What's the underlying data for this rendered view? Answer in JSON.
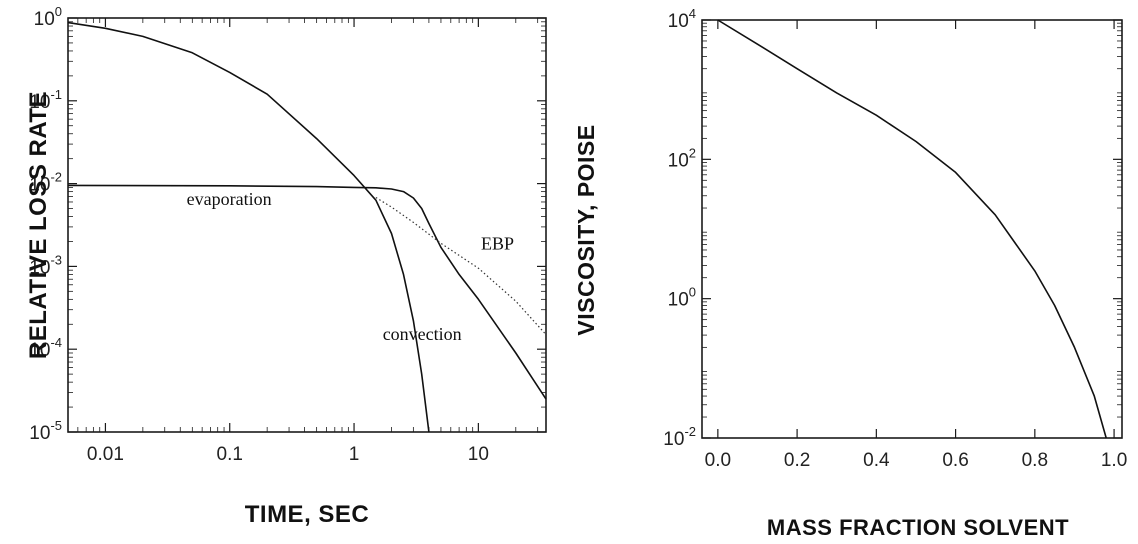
{
  "chart_data": [
    {
      "type": "line",
      "xlabel": "TIME, SEC",
      "ylabel": "RELATIVE LOSS RATE",
      "xscale": "log",
      "yscale": "log",
      "xlim": [
        0.005,
        35
      ],
      "ylim": [
        1e-05,
        1
      ],
      "xticks": [
        {
          "value": 0.01,
          "label": "0.01"
        },
        {
          "value": 0.1,
          "label": "0.1"
        },
        {
          "value": 1,
          "label": "1"
        },
        {
          "value": 10,
          "label": "10"
        }
      ],
      "yticks": [
        {
          "value": 1,
          "base": "10",
          "exp": "0"
        },
        {
          "value": 0.1,
          "base": "10",
          "exp": "-1"
        },
        {
          "value": 0.01,
          "base": "10",
          "exp": "-2"
        },
        {
          "value": 0.001,
          "base": "10",
          "exp": "-3"
        },
        {
          "value": 0.0001,
          "base": "10",
          "exp": "-4"
        },
        {
          "value": 1e-05,
          "base": "10",
          "exp": "-5"
        }
      ],
      "series": [
        {
          "name": "convection",
          "style": "solid",
          "x": [
            0.005,
            0.01,
            0.02,
            0.05,
            0.1,
            0.2,
            0.5,
            1.0,
            1.5,
            2.0,
            2.5,
            3.0,
            3.5,
            4.0
          ],
          "y": [
            0.88,
            0.75,
            0.6,
            0.38,
            0.22,
            0.12,
            0.035,
            0.0125,
            0.0063,
            0.0025,
            0.0008,
            0.00022,
            5e-05,
            1e-05
          ]
        },
        {
          "name": "evaporation",
          "style": "solid",
          "x": [
            0.005,
            0.1,
            0.5,
            1.0,
            1.5,
            2.0,
            2.5,
            3.0,
            3.5,
            4.0,
            5.0,
            7.0,
            10,
            20,
            35
          ],
          "y": [
            0.0095,
            0.0094,
            0.0092,
            0.009,
            0.0089,
            0.0086,
            0.008,
            0.0067,
            0.005,
            0.0033,
            0.0017,
            0.0008,
            0.0004,
            9e-05,
            2.5e-05
          ]
        },
        {
          "name": "EBP",
          "style": "dotted",
          "x": [
            1.5,
            2.0,
            3.0,
            5.0,
            10,
            20,
            35
          ],
          "y": [
            0.0068,
            0.0052,
            0.0034,
            0.0019,
            0.00095,
            0.00038,
            0.00015
          ]
        }
      ],
      "annotations": [
        {
          "text": "evaporation",
          "x": 0.045,
          "y": 0.0055
        },
        {
          "text": "convection",
          "x": 1.7,
          "y": 0.00013
        },
        {
          "text": "EBP",
          "x": 10.5,
          "y": 0.0016
        }
      ],
      "grid": false,
      "legend": "none"
    },
    {
      "type": "line",
      "xlabel": "MASS FRACTION SOLVENT",
      "ylabel": "VISCOSITY, POISE",
      "xscale": "linear",
      "yscale": "log",
      "xlim": [
        -0.04,
        1.02
      ],
      "ylim": [
        0.01,
        10000
      ],
      "xticks": [
        {
          "value": 0.0,
          "label": "0.0"
        },
        {
          "value": 0.2,
          "label": "0.2"
        },
        {
          "value": 0.4,
          "label": "0.4"
        },
        {
          "value": 0.6,
          "label": "0.6"
        },
        {
          "value": 0.8,
          "label": "0.8"
        },
        {
          "value": 1.0,
          "label": "1.0"
        }
      ],
      "yticks": [
        {
          "value": 10000,
          "base": "10",
          "exp": "4"
        },
        {
          "value": 100,
          "base": "10",
          "exp": "2"
        },
        {
          "value": 1,
          "base": "10",
          "exp": "0"
        },
        {
          "value": 0.01,
          "base": "10",
          "exp": "-2"
        }
      ],
      "series": [
        {
          "name": "",
          "style": "solid",
          "x": [
            0.0,
            0.1,
            0.2,
            0.3,
            0.4,
            0.5,
            0.6,
            0.7,
            0.8,
            0.85,
            0.9,
            0.95,
            0.98
          ],
          "y": [
            10000,
            4500,
            2000,
            900,
            430,
            180,
            65,
            16,
            2.5,
            0.8,
            0.2,
            0.04,
            0.01
          ]
        }
      ],
      "grid": false,
      "legend": "none"
    }
  ]
}
